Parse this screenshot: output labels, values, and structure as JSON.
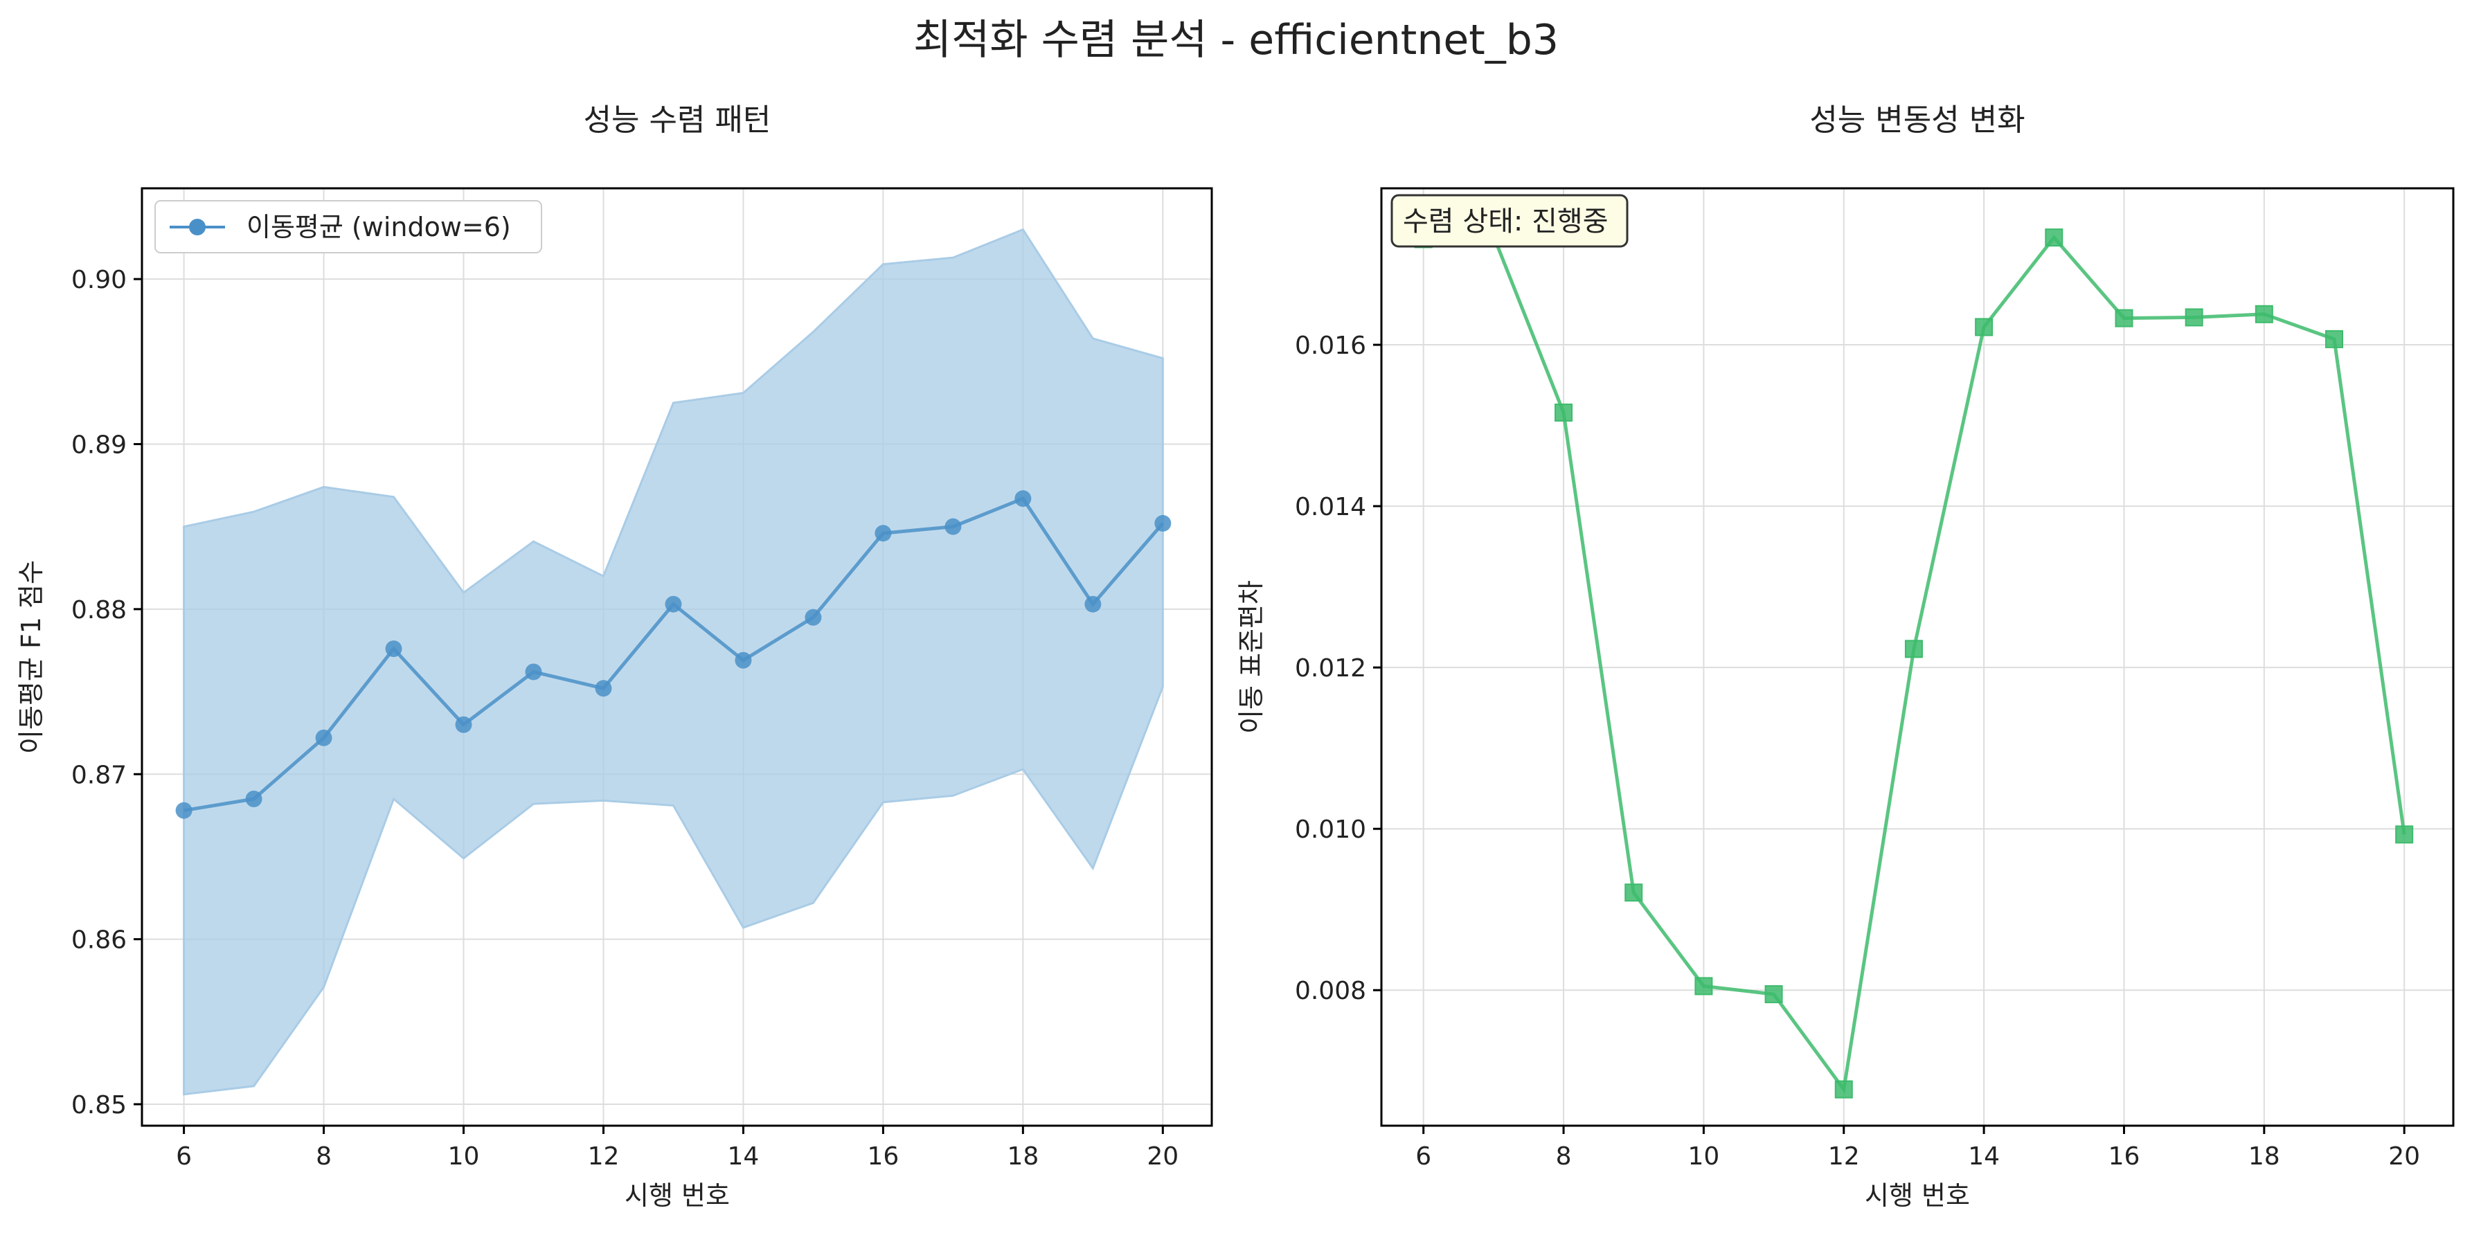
{
  "suptitle": "최적화 수렴 분석 - efficientnet_b3",
  "colors": {
    "left_line": "#4a90c8",
    "left_band": "#a9cce6",
    "right_line": "#3dbb6c",
    "grid": "#dddddd",
    "status_bg": "#fdfde6"
  },
  "chart_data": [
    {
      "type": "line",
      "title": "성능 수렴 패턴",
      "xlabel": "시행 번호",
      "ylabel": "이동평균 F1 점수",
      "legend_position": "upper-left",
      "grid": true,
      "xlim": [
        5.4,
        20.7
      ],
      "ylim": [
        0.8487,
        0.9055
      ],
      "xticks": [
        6,
        8,
        10,
        12,
        14,
        16,
        18,
        20
      ],
      "yticks": [
        0.85,
        0.86,
        0.87,
        0.88,
        0.89,
        0.9
      ],
      "x": [
        6,
        7,
        8,
        9,
        10,
        11,
        12,
        13,
        14,
        15,
        16,
        17,
        18,
        19,
        20
      ],
      "series": [
        {
          "name": "이동평균 (window=6)",
          "marker": "circle",
          "values": [
            0.8678,
            0.8685,
            0.8722,
            0.8776,
            0.873,
            0.8762,
            0.8752,
            0.8803,
            0.8769,
            0.8795,
            0.8846,
            0.885,
            0.8867,
            0.8803,
            0.8852
          ]
        }
      ],
      "band": {
        "upper": [
          0.885,
          0.8859,
          0.8874,
          0.8868,
          0.881,
          0.8841,
          0.882,
          0.8925,
          0.8931,
          0.8968,
          0.9009,
          0.9013,
          0.903,
          0.8964,
          0.8952
        ],
        "lower": [
          0.8506,
          0.8511,
          0.8571,
          0.8685,
          0.8649,
          0.8682,
          0.8684,
          0.8681,
          0.8607,
          0.8622,
          0.8683,
          0.8687,
          0.8703,
          0.8643,
          0.8753
        ]
      }
    },
    {
      "type": "line",
      "title": "성능 변동성 변화",
      "xlabel": "시행 번호",
      "ylabel": "이동 표준편차",
      "grid": true,
      "xlim": [
        5.4,
        20.7
      ],
      "ylim": [
        0.00632,
        0.01794
      ],
      "xticks": [
        6,
        8,
        10,
        12,
        14,
        16,
        18,
        20
      ],
      "yticks": [
        0.008,
        0.01,
        0.012,
        0.014,
        0.016
      ],
      "x": [
        6,
        7,
        8,
        9,
        10,
        11,
        12,
        13,
        14,
        15,
        16,
        17,
        18,
        19,
        20
      ],
      "series": [
        {
          "marker": "square",
          "values": [
            0.01731,
            0.01735,
            0.01516,
            0.00921,
            0.00805,
            0.00795,
            0.00677,
            0.01223,
            0.01622,
            0.01733,
            0.01633,
            0.01634,
            0.01638,
            0.01607,
            0.00993
          ]
        }
      ],
      "annotation": "수렴 상태: 진행중"
    }
  ]
}
